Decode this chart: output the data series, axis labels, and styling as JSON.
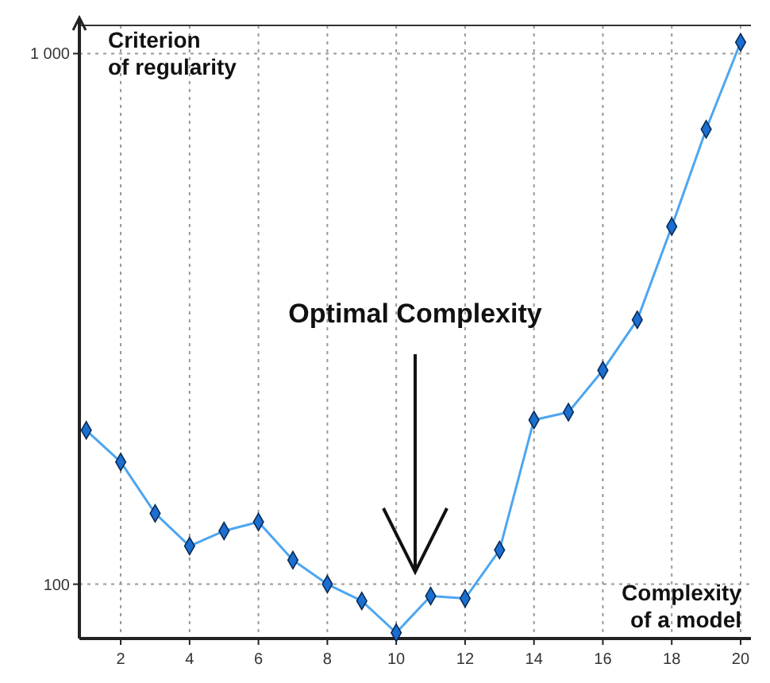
{
  "chart_data": {
    "type": "line",
    "xlabel": "Complexity of a model",
    "ylabel": "Criterion of regularity",
    "annotations": [
      "Optimal Complexity"
    ],
    "x": [
      1,
      2,
      3,
      4,
      5,
      6,
      7,
      8,
      9,
      10,
      11,
      12,
      13,
      14,
      15,
      16,
      17,
      18,
      19,
      20
    ],
    "series": [
      {
        "color": "#4da6f0",
        "values": [
          195,
          170,
          136,
          118,
          126,
          131,
          111,
          100,
          93,
          81,
          95,
          94,
          116,
          204,
          211,
          253,
          315,
          472,
          720,
          1050
        ]
      }
    ],
    "xlim": [
      0.8,
      20.3
    ],
    "ylim": [
      79,
      1130
    ],
    "log": true,
    "xticks": [
      2,
      4,
      6,
      8,
      10,
      12,
      14,
      16,
      18,
      20
    ],
    "yticks": [
      100,
      {
        "value": 1000,
        "label": "1 000"
      }
    ],
    "grid": true,
    "marker": "diamond",
    "line_style": "solid"
  }
}
